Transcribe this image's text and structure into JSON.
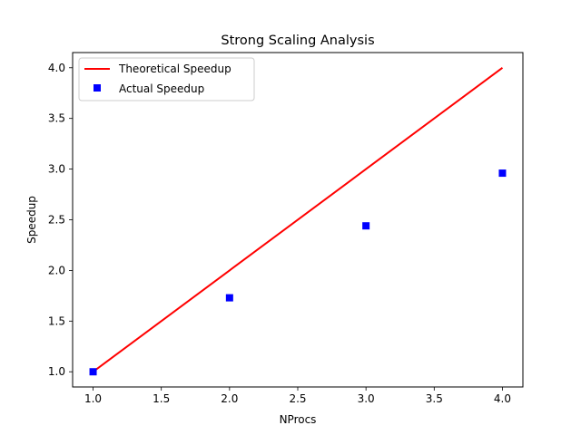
{
  "chart_data": {
    "type": "line",
    "title": "Strong Scaling Analysis",
    "xlabel": "NProcs",
    "ylabel": "Speedup",
    "xlim": [
      0.85,
      4.15
    ],
    "ylim": [
      0.85,
      4.15
    ],
    "xticks": [
      "1.0",
      "1.5",
      "2.0",
      "2.5",
      "3.0",
      "3.5",
      "4.0"
    ],
    "yticks": [
      "1.0",
      "1.5",
      "2.0",
      "2.5",
      "3.0",
      "3.5",
      "4.0"
    ],
    "grid": false,
    "legend_position": "top-left",
    "series": [
      {
        "name": "Theoretical Speedup",
        "style": "line",
        "color": "#ff0000",
        "x": [
          1,
          2,
          3,
          4
        ],
        "y": [
          1.0,
          2.0,
          3.0,
          4.0
        ]
      },
      {
        "name": "Actual Speedup",
        "style": "square-markers",
        "color": "#0000ff",
        "x": [
          1,
          2,
          3,
          4
        ],
        "y": [
          1.0,
          1.73,
          2.44,
          2.96
        ]
      }
    ]
  }
}
